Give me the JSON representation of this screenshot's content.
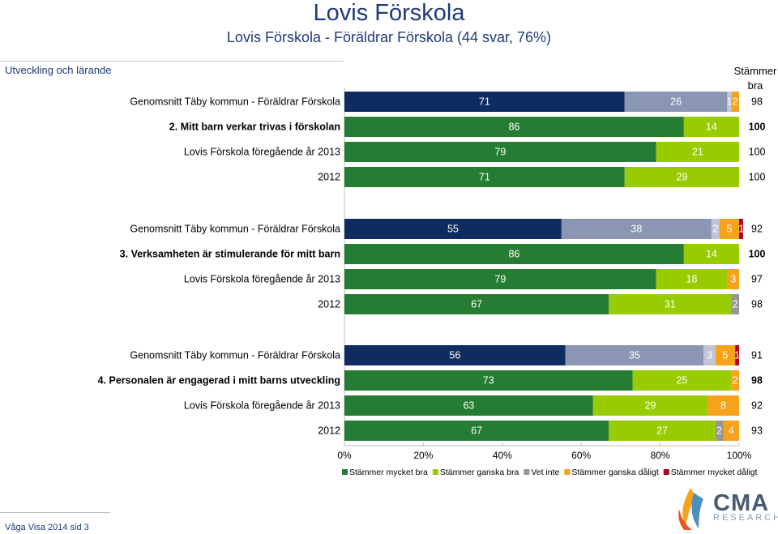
{
  "header": {
    "title": "Lovis Förskola",
    "subtitle": "Lovis Förskola - Föräldrar Förskola (44 svar, 76%)",
    "section": "Utveckling och lärande",
    "agree_col_label": [
      "Stämmer",
      "bra"
    ]
  },
  "chart_data": {
    "type": "bar",
    "orientation": "horizontal-stacked-percent",
    "xlim": [
      0,
      100
    ],
    "x_ticks": [
      "0%",
      "20%",
      "40%",
      "60%",
      "80%",
      "100%"
    ],
    "legend": [
      {
        "name": "Stämmer mycket bra",
        "color": "#267c33"
      },
      {
        "name": "Stämmer ganska bra",
        "color": "#99cc00"
      },
      {
        "name": "Vet inte",
        "color": "#969696"
      },
      {
        "name": "Stämmer ganska dåligt",
        "color": "#f7a21b"
      },
      {
        "name": "Stämmer mycket dåligt",
        "color": "#b2001a"
      }
    ],
    "groups": [
      {
        "rows": [
          {
            "label": "Genomsnitt Täby kommun - Föräldrar Förskola",
            "bold": false,
            "kind": "avg",
            "values": [
              71,
              26,
              1,
              2,
              0
            ],
            "total": "98"
          },
          {
            "label": "2. Mitt barn verkar trivas i förskolan",
            "bold": true,
            "kind": "main",
            "values": [
              86,
              14,
              0,
              0,
              0
            ],
            "total": "100"
          },
          {
            "label": "Lovis Förskola föregående år 2013",
            "bold": false,
            "kind": "main",
            "values": [
              79,
              21,
              0,
              0,
              0
            ],
            "total": "100"
          },
          {
            "label": "2012",
            "bold": false,
            "kind": "main",
            "values": [
              71,
              29,
              0,
              0,
              0
            ],
            "total": "100"
          }
        ]
      },
      {
        "rows": [
          {
            "label": "Genomsnitt Täby kommun - Föräldrar Förskola",
            "bold": false,
            "kind": "avg",
            "values": [
              55,
              38,
              2,
              5,
              1
            ],
            "total": "92"
          },
          {
            "label": "3. Verksamheten är stimulerande för mitt barn",
            "bold": true,
            "kind": "main",
            "values": [
              86,
              14,
              0,
              0,
              0
            ],
            "total": "100"
          },
          {
            "label": "Lovis Förskola föregående år 2013",
            "bold": false,
            "kind": "main",
            "values": [
              79,
              18,
              0,
              3,
              0
            ],
            "total": "97"
          },
          {
            "label": "2012",
            "bold": false,
            "kind": "main",
            "values": [
              67,
              31,
              2,
              0,
              0
            ],
            "total": "98"
          }
        ]
      },
      {
        "rows": [
          {
            "label": "Genomsnitt Täby kommun - Föräldrar Förskola",
            "bold": false,
            "kind": "avg",
            "values": [
              56,
              35,
              3,
              5,
              1
            ],
            "total": "91"
          },
          {
            "label": "4. Personalen är engagerad i mitt barns utveckling",
            "bold": true,
            "kind": "main",
            "values": [
              73,
              25,
              0,
              2,
              0
            ],
            "total": "98"
          },
          {
            "label": "Lovis Förskola föregående år 2013",
            "bold": false,
            "kind": "main",
            "values": [
              63,
              29,
              0,
              8,
              0
            ],
            "total": "92"
          },
          {
            "label": "2012",
            "bold": false,
            "kind": "main",
            "values": [
              67,
              27,
              2,
              4,
              0
            ],
            "total": "93"
          }
        ]
      }
    ],
    "avg_colors": [
      "#0f2c60",
      "#8a96b4",
      "#bfc5d6",
      "#f7a21b",
      "#b2001a"
    ]
  },
  "footer": {
    "text": "Våga Visa 2014 sid 3",
    "logo_text": "CMA",
    "logo_sub": "RESEARCH"
  }
}
